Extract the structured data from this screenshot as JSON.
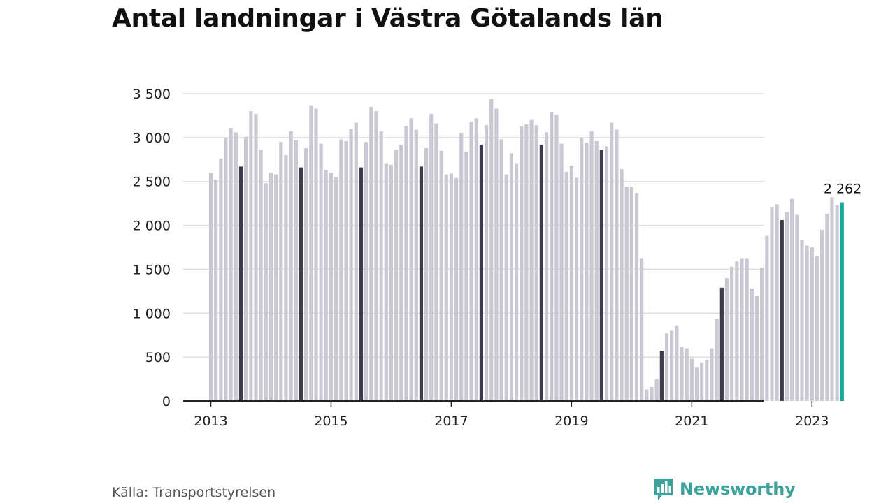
{
  "title": "Antal landningar i Västra Götalands län",
  "source": "Källa: Transportstyrelsen",
  "brand": {
    "name": "Newsworthy",
    "icon": "newsworthy-logo-icon"
  },
  "colors": {
    "bar": "#c9c8d3",
    "highlight": "#3e3c4c",
    "latest": "#17a89c",
    "grid": "#dedede",
    "axis": "#222222",
    "brand": "#3ba39a"
  },
  "chart_data": {
    "type": "bar",
    "start": "2013-01",
    "ylim": [
      0,
      3500
    ],
    "yticks": [
      0,
      500,
      1000,
      1500,
      2000,
      2500,
      3000,
      3500
    ],
    "ytick_labels": [
      "0",
      "500",
      "1 000",
      "1 500",
      "2 000",
      "2 500",
      "3 000",
      "3 500"
    ],
    "xticks": [
      "2013-01",
      "2015-01",
      "2017-01",
      "2019-01",
      "2021-01",
      "2023-01"
    ],
    "xtick_labels": [
      "2013",
      "2015",
      "2017",
      "2019",
      "2021",
      "2023"
    ],
    "highlight_month": 7,
    "grid": true,
    "legend": "none",
    "annotation": {
      "month": "2023-07",
      "text": "2 262"
    },
    "values": [
      2600,
      2520,
      2760,
      3000,
      3110,
      3060,
      2670,
      3010,
      3300,
      3270,
      2860,
      2480,
      2600,
      2580,
      2950,
      2800,
      3070,
      2970,
      2660,
      2880,
      3360,
      3330,
      2930,
      2630,
      2600,
      2550,
      2980,
      2960,
      3100,
      3170,
      2660,
      2950,
      3350,
      3300,
      3070,
      2700,
      2690,
      2860,
      2920,
      3130,
      3220,
      3090,
      2670,
      2880,
      3270,
      3160,
      2850,
      2580,
      2590,
      2540,
      3050,
      2840,
      3180,
      3220,
      2920,
      3140,
      3440,
      3330,
      2980,
      2580,
      2820,
      2700,
      3130,
      3150,
      3200,
      3140,
      2920,
      3060,
      3290,
      3260,
      2930,
      2610,
      2680,
      2540,
      3000,
      2940,
      3070,
      2960,
      2860,
      2900,
      3170,
      3090,
      2640,
      2440,
      2440,
      2370,
      1620,
      130,
      160,
      250,
      570,
      770,
      800,
      860,
      620,
      600,
      480,
      380,
      440,
      470,
      600,
      940,
      1290,
      1400,
      1530,
      1590,
      1620,
      1620,
      1280,
      1200,
      1520,
      1880,
      2210,
      2240,
      2060,
      2150,
      2300,
      2120,
      1830,
      1770,
      1750,
      1650,
      1950,
      2130,
      2320,
      2230,
      2262
    ]
  }
}
